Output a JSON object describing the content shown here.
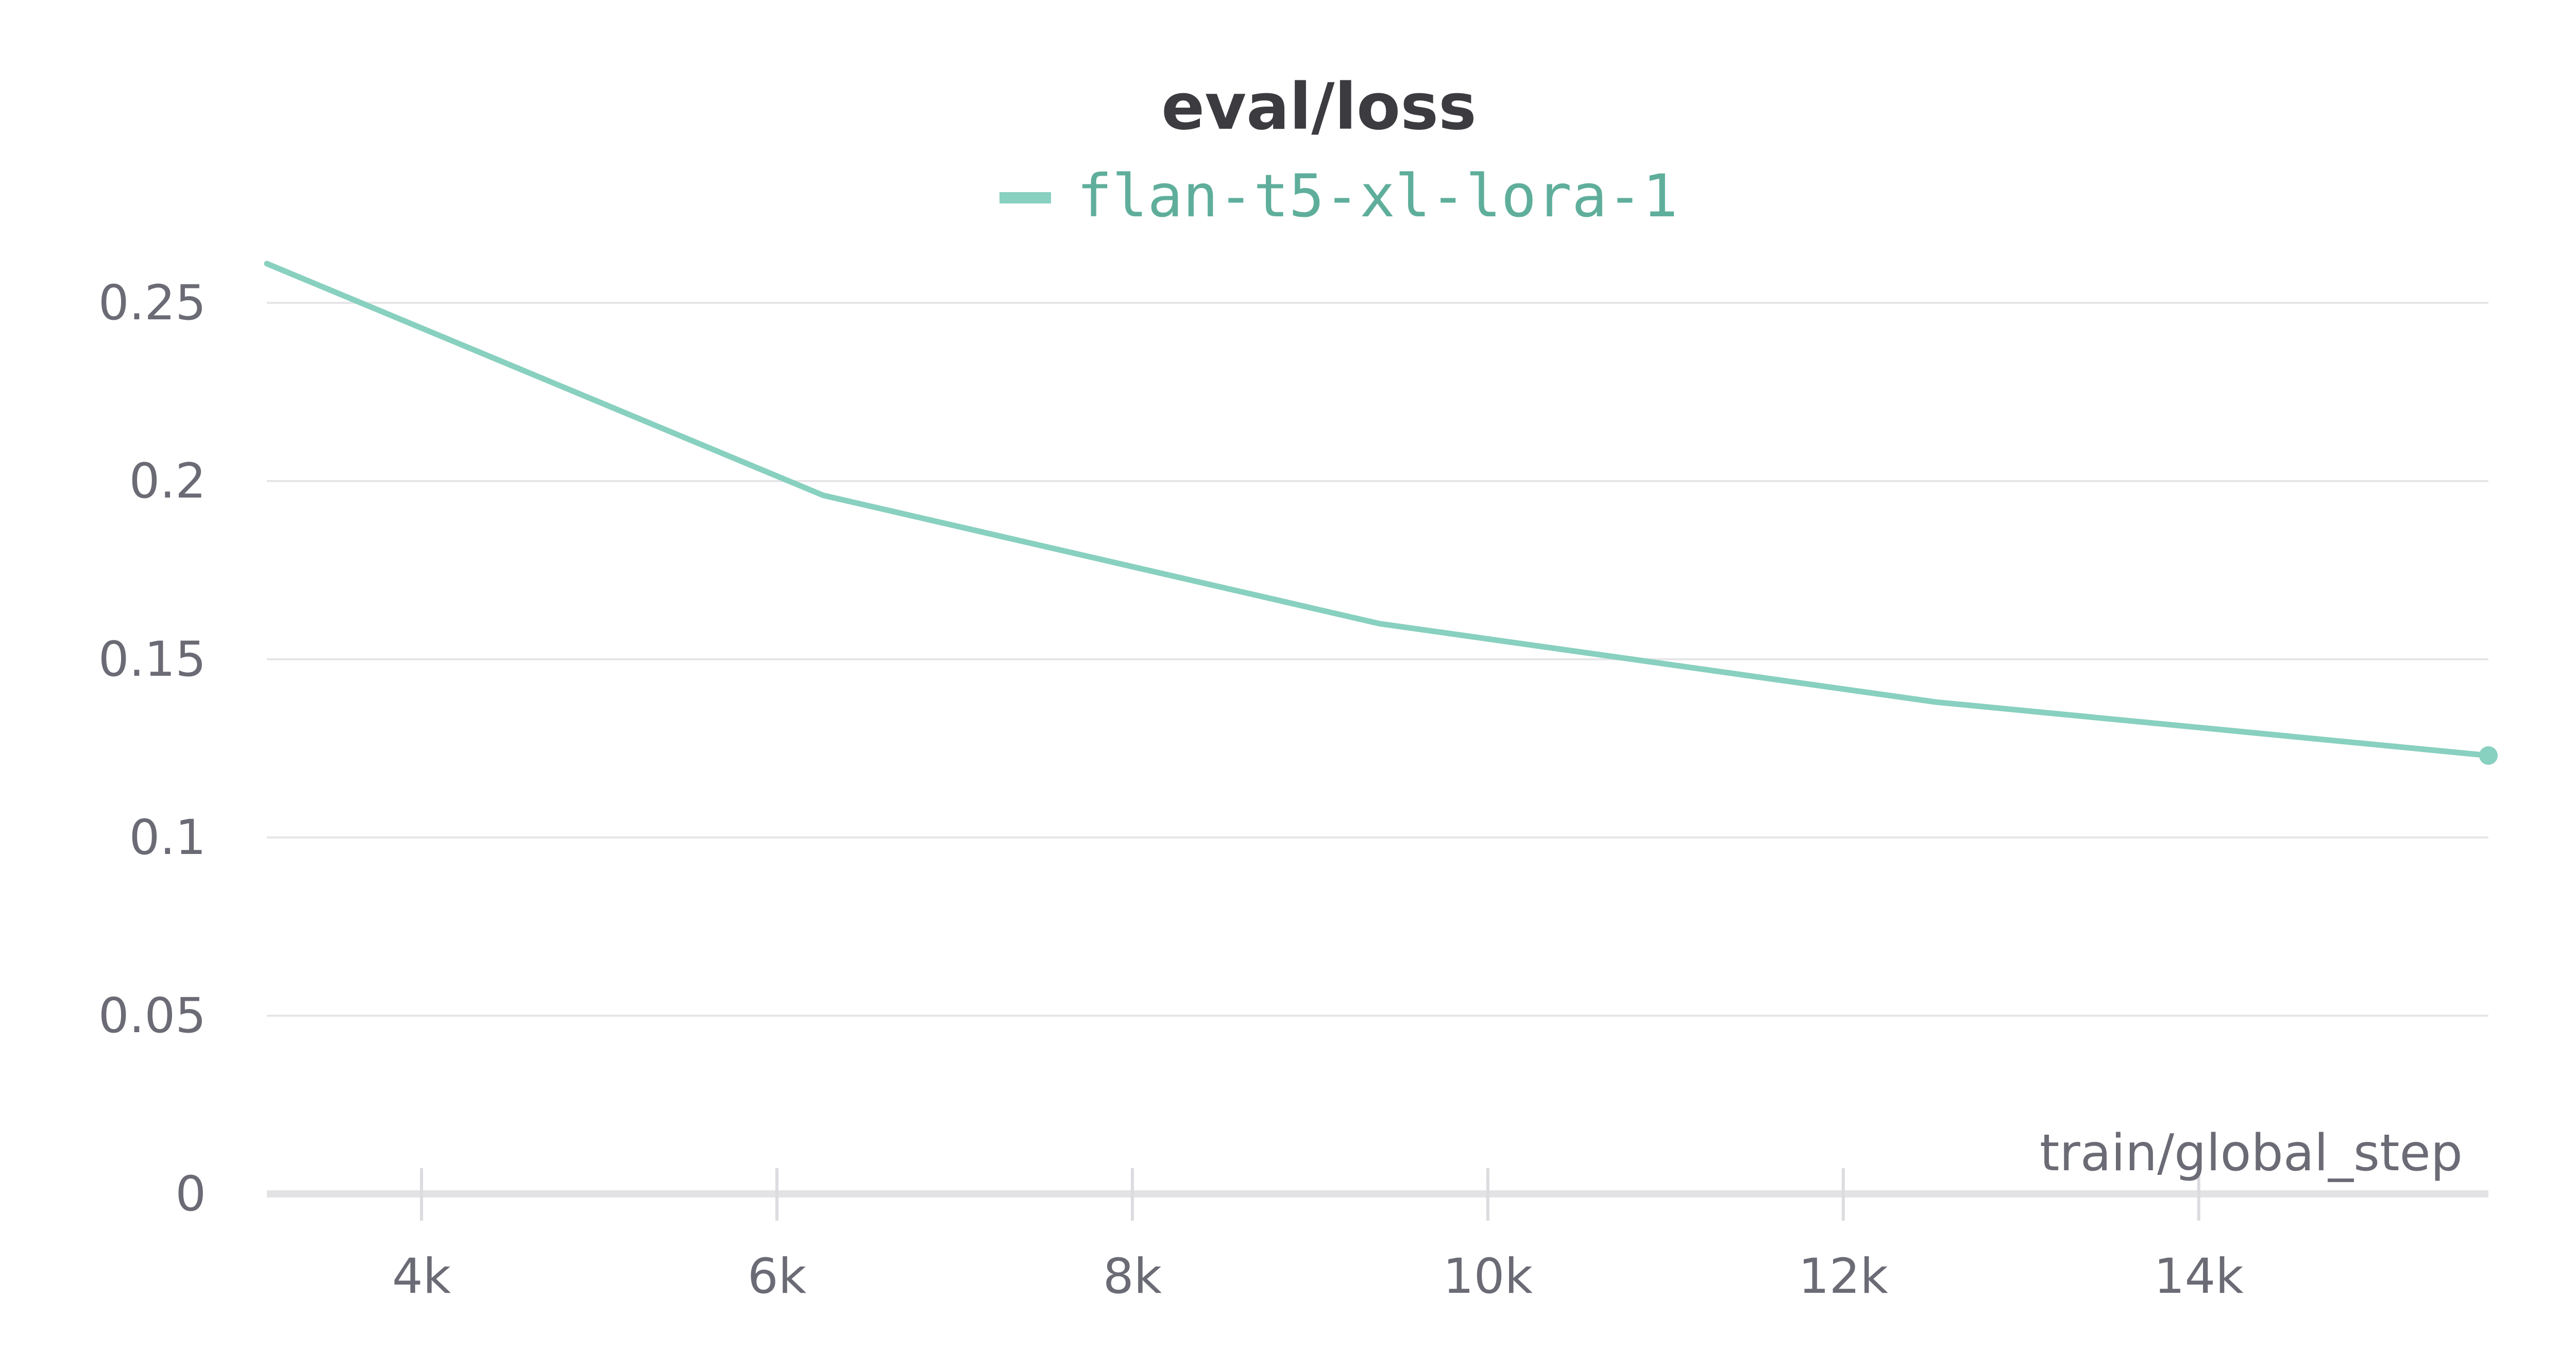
{
  "chart_data": {
    "type": "line",
    "title": "eval/loss",
    "xlabel": "train/global_step",
    "ylabel": "",
    "xlim": [
      3130,
      15630
    ],
    "ylim": [
      0,
      0.25
    ],
    "x_ticks": [
      4000,
      6000,
      8000,
      10000,
      12000,
      14000
    ],
    "x_tick_labels": [
      "4k",
      "6k",
      "8k",
      "10k",
      "12k",
      "14k"
    ],
    "y_ticks": [
      0,
      0.05,
      0.1,
      0.15,
      0.2,
      0.25
    ],
    "y_tick_labels": [
      "0",
      "0.05",
      "0.1",
      "0.15",
      "0.2",
      "0.25"
    ],
    "grid": true,
    "legend_position": "top-center",
    "series": [
      {
        "name": "flan-t5-xl-lora-1",
        "color": "#88d0bf",
        "text_color": "#5fae9b",
        "x": [
          3130,
          6260,
          9390,
          12520,
          15630
        ],
        "y": [
          0.261,
          0.196,
          0.16,
          0.138,
          0.123
        ]
      }
    ]
  }
}
